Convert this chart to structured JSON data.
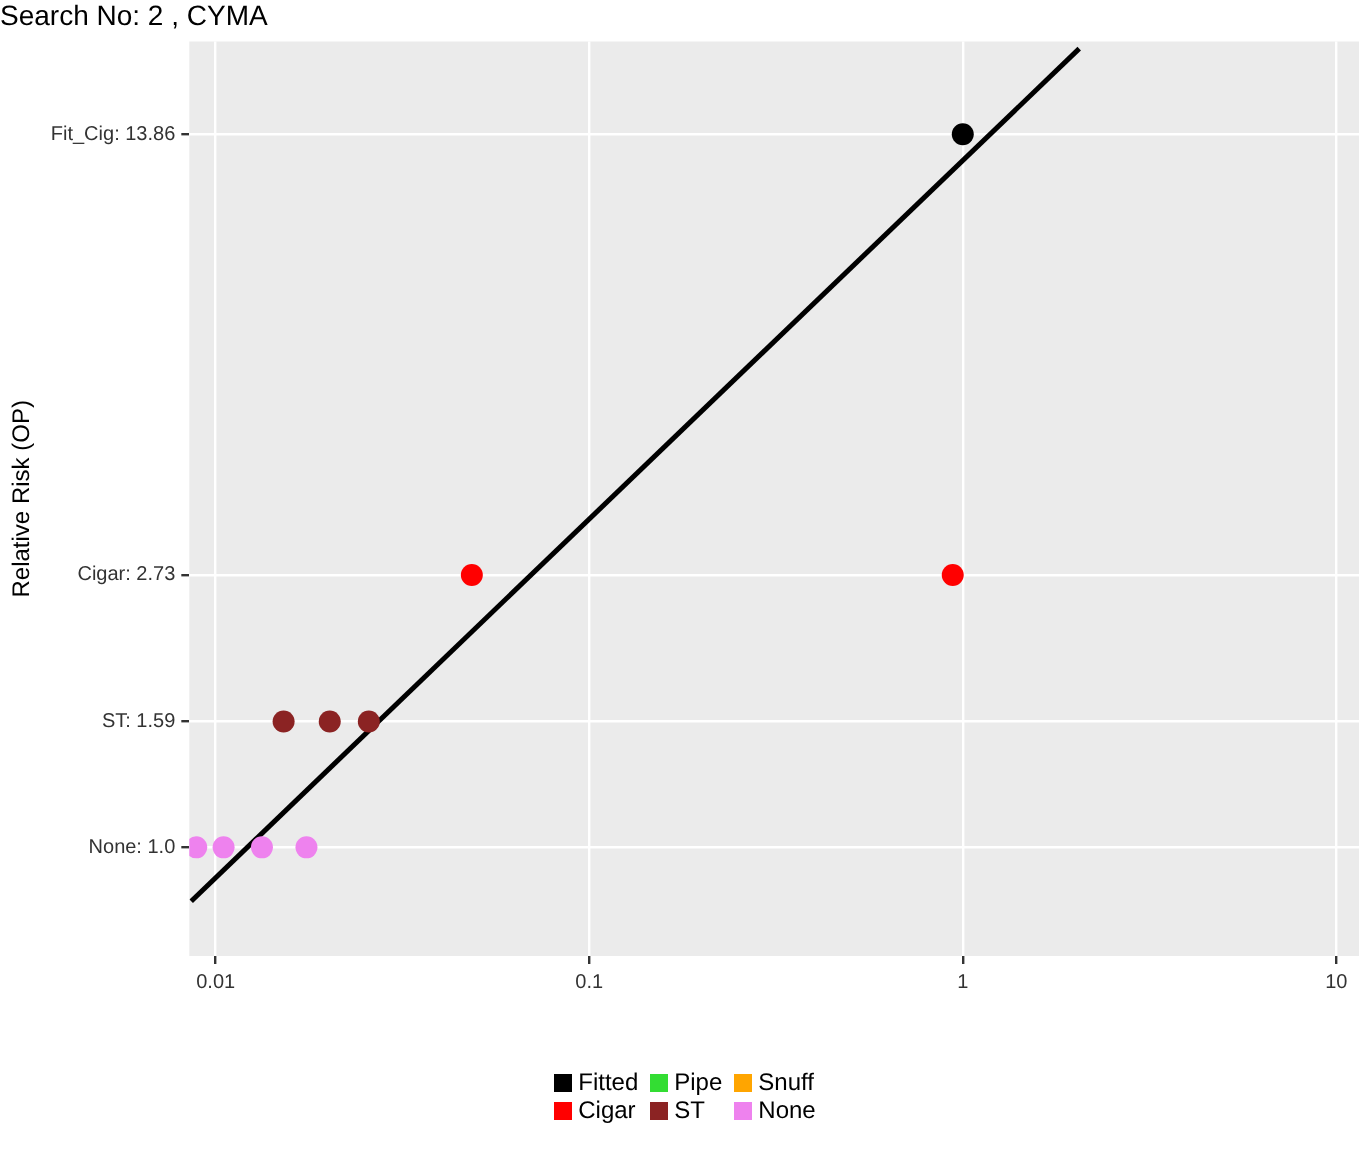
{
  "chart_data": {
    "type": "scatter",
    "title": "Search No: 2 , CYMA",
    "ylabel": "Relative Risk (OP)",
    "log": "xy",
    "grid": true,
    "legend": "bottom",
    "marker": "circle",
    "xlim": [
      0.0085,
      11.5
    ],
    "xticks": [
      0.01,
      0.1,
      1,
      10
    ],
    "ylim": [
      0.67,
      19.5
    ],
    "yticks": [
      {
        "value": 1.0,
        "label": "None: 1.0"
      },
      {
        "value": 1.59,
        "label": "ST: 1.59"
      },
      {
        "value": 2.73,
        "label": "Cigar: 2.73"
      },
      {
        "value": 13.86,
        "label": "Fit_Cig: 13.86"
      }
    ],
    "series": [
      {
        "type": "line",
        "color": "#000000",
        "x": [
          0.0086,
          2.05
        ],
        "values": [
          0.82,
          19.0
        ],
        "line_style": "solid",
        "marker": "none"
      },
      {
        "name": "Fitted",
        "color": "#000000",
        "x": [
          1.0
        ],
        "values": [
          13.86
        ]
      },
      {
        "name": "Pipe",
        "color": "#33dd33"
      },
      {
        "name": "Snuff",
        "color": "#ffa500"
      },
      {
        "name": "Cigar",
        "color": "#ff0000",
        "x": [
          0.0485,
          0.94
        ],
        "values": [
          2.73,
          2.73
        ]
      },
      {
        "name": "ST",
        "color": "#8b2323",
        "x": [
          0.0152,
          0.0202,
          0.0257
        ],
        "values": [
          1.59,
          1.59,
          1.59
        ]
      },
      {
        "name": "None",
        "color": "#ee82ee",
        "x": [
          0.00887,
          0.0105,
          0.0133,
          0.0175
        ],
        "values": [
          1.0,
          1.0,
          1.0,
          1.0
        ]
      }
    ]
  }
}
